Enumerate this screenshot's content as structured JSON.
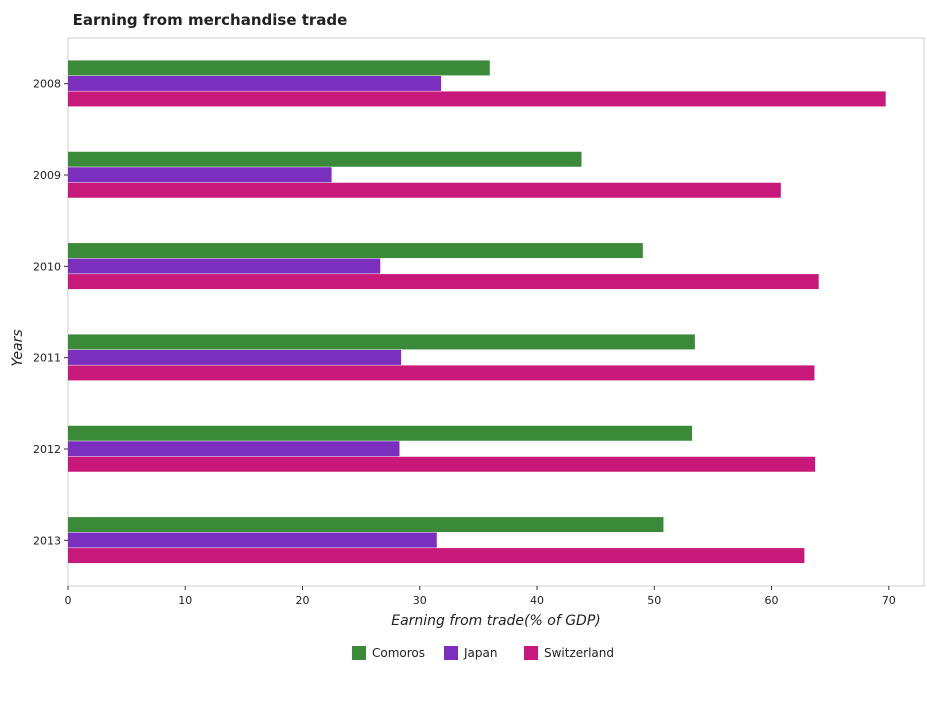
{
  "chart_data": {
    "type": "bar",
    "orientation": "horizontal",
    "title": "Earning from merchandise trade",
    "xlabel": "Earning from trade(% of GDP)",
    "ylabel": "Years",
    "categories": [
      "2008",
      "2009",
      "2010",
      "2011",
      "2012",
      "2013"
    ],
    "xlim": [
      0,
      73
    ],
    "xticks": [
      0,
      10,
      20,
      30,
      40,
      50,
      60,
      70
    ],
    "grid": false,
    "legend_position": "bottom-center",
    "series": [
      {
        "name": "Comoros",
        "color": "#3a8a3a",
        "values": [
          35.97,
          43.79,
          49.02,
          53.46,
          53.22,
          50.78
        ]
      },
      {
        "name": "Japan",
        "color": "#7b2fbe",
        "values": [
          31.82,
          22.48,
          26.63,
          28.41,
          28.27,
          31.45
        ]
      },
      {
        "name": "Switzerland",
        "color": "#c8187a",
        "values": [
          69.73,
          60.79,
          64.02,
          63.66,
          63.72,
          62.8
        ]
      }
    ]
  }
}
